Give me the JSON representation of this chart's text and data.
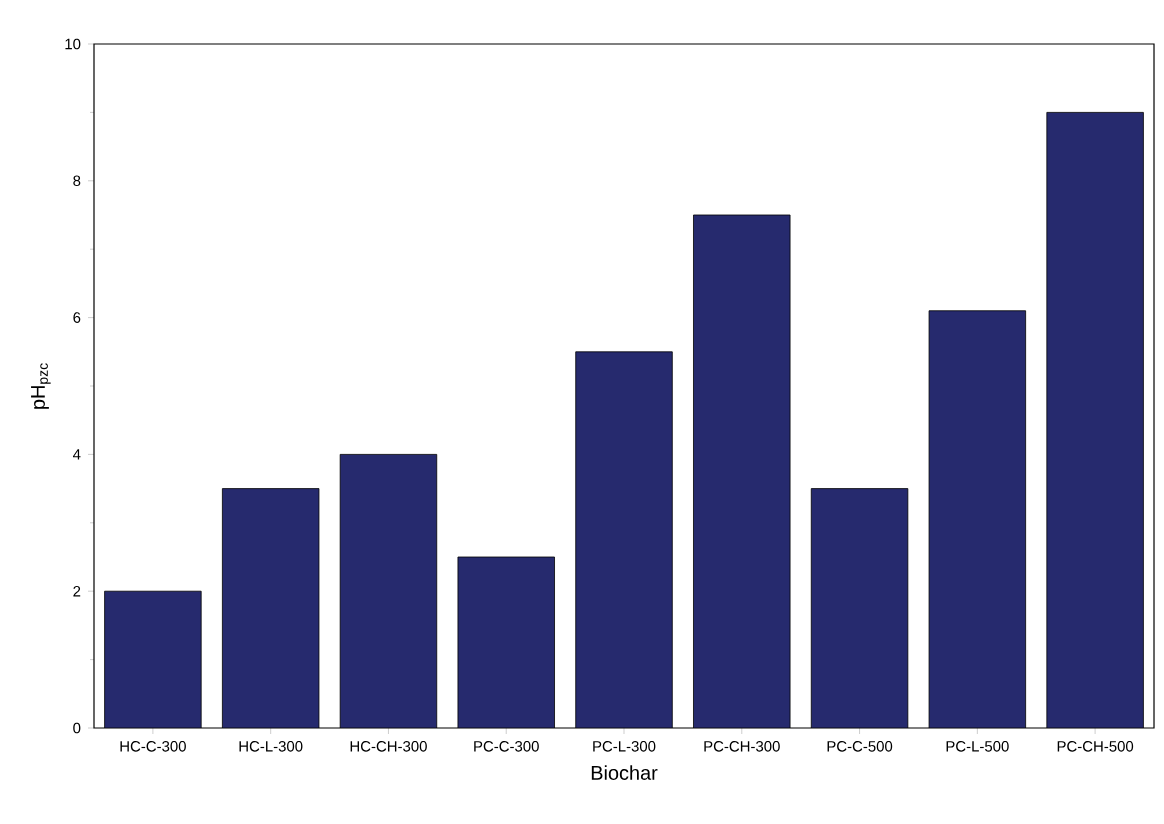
{
  "chart_data": {
    "type": "bar",
    "categories": [
      "HC-C-300",
      "HC-L-300",
      "HC-CH-300",
      "PC-C-300",
      "PC-L-300",
      "PC-CH-300",
      "PC-C-500",
      "PC-L-500",
      "PC-CH-500"
    ],
    "values": [
      2,
      3.5,
      4,
      2.5,
      5.5,
      7.5,
      3.5,
      6.1,
      9
    ],
    "color": "#262a6e",
    "xlabel": "Biochar",
    "ylabel": "pH$_{pzc}$",
    "ylim": [
      0,
      10
    ],
    "yticks": [
      0,
      2,
      4,
      6,
      8,
      10
    ]
  }
}
